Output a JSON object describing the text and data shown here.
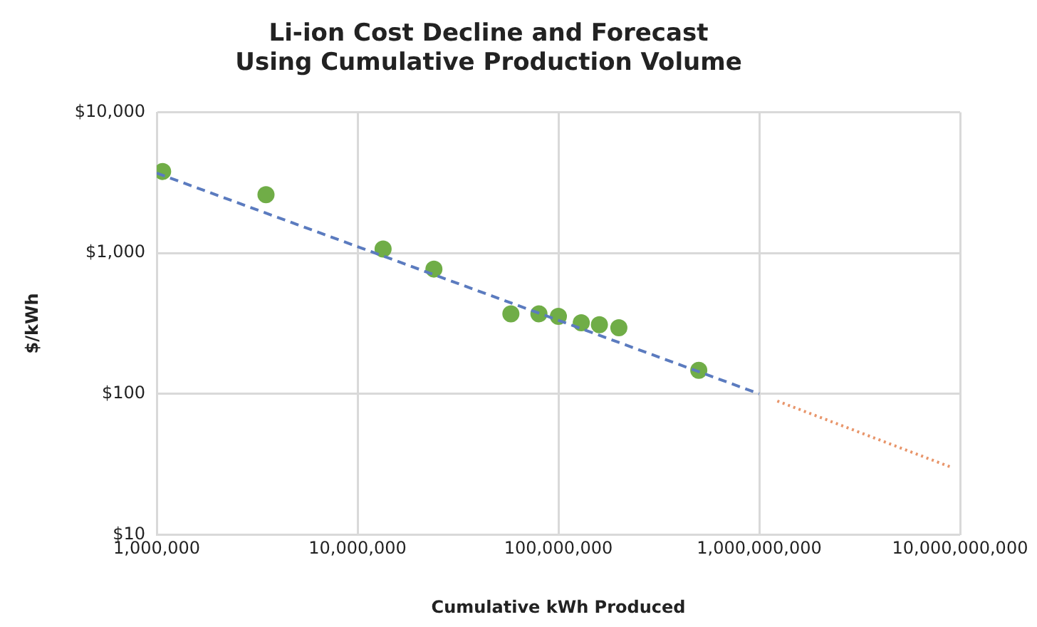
{
  "chart_data": {
    "type": "scatter",
    "title": "Li-ion Cost Decline and Forecast\nUsing Cumulative Production Volume",
    "xlabel": "Cumulative kWh Produced",
    "ylabel": "$/kWh",
    "log": "xy",
    "grid": true,
    "legend": false,
    "xlim": [
      1000000,
      10000000000
    ],
    "xticks": [
      {
        "value": 1000000,
        "label": "1,000,000"
      },
      {
        "value": 10000000,
        "label": "10,000,000"
      },
      {
        "value": 100000000,
        "label": "100,000,000"
      },
      {
        "value": 1000000000,
        "label": "1,000,000,000"
      },
      {
        "value": 10000000000,
        "label": "10,000,000,000"
      }
    ],
    "ylim": [
      10,
      10000
    ],
    "yticks": [
      {
        "value": 10,
        "label": "$10"
      },
      {
        "value": 100,
        "label": "$100"
      },
      {
        "value": 1000,
        "label": "$1,000"
      },
      {
        "value": 10000,
        "label": "$10,000"
      }
    ],
    "series": [
      {
        "type": "line",
        "color": "#5b7bbf",
        "line_style": "dashed",
        "marker": "none",
        "x": [
          1000000,
          1000000000
        ],
        "values": [
          3700,
          100
        ]
      },
      {
        "type": "line",
        "color": "#e8956a",
        "line_style": "dotted",
        "marker": "none",
        "x": [
          1230000000,
          9100000000
        ],
        "values": [
          89,
          30
        ]
      },
      {
        "type": "scatter",
        "color": "#70ad47",
        "marker": "circle",
        "x": [
          1070000,
          3500000,
          13400000,
          24000000,
          58000000,
          80000000,
          100000000,
          130000000,
          160000000,
          200000000,
          500000000
        ],
        "values": [
          3800,
          2600,
          1070,
          770,
          370,
          370,
          355,
          320,
          310,
          295,
          147
        ]
      }
    ]
  }
}
